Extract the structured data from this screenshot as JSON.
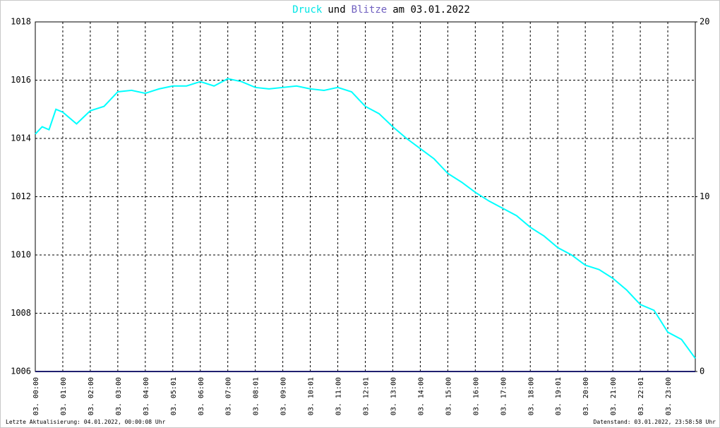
{
  "chart_data": {
    "type": "line",
    "title": [
      {
        "text": "Druck",
        "color": "#00e5e5"
      },
      {
        "text": "und",
        "color": "#000000"
      },
      {
        "text": "Blitze",
        "color": "#7060c0"
      },
      {
        "text": "am 03.01.2022",
        "color": "#000000"
      }
    ],
    "xlim": [
      0,
      24
    ],
    "xticks": [
      {
        "value": 0,
        "label": "03. 00:00"
      },
      {
        "value": 1,
        "label": "03. 01:00"
      },
      {
        "value": 2,
        "label": "03. 02:00"
      },
      {
        "value": 3,
        "label": "03. 03:00"
      },
      {
        "value": 4,
        "label": "03. 04:00"
      },
      {
        "value": 5,
        "label": "03. 05:01"
      },
      {
        "value": 6,
        "label": "03. 06:00"
      },
      {
        "value": 7,
        "label": "03. 07:00"
      },
      {
        "value": 8,
        "label": "03. 08:01"
      },
      {
        "value": 9,
        "label": "03. 09:00"
      },
      {
        "value": 10,
        "label": "03. 10:01"
      },
      {
        "value": 11,
        "label": "03. 11:00"
      },
      {
        "value": 12,
        "label": "03. 12:01"
      },
      {
        "value": 13,
        "label": "03. 13:00"
      },
      {
        "value": 14,
        "label": "03. 14:00"
      },
      {
        "value": 15,
        "label": "03. 15:00"
      },
      {
        "value": 16,
        "label": "03. 16:00"
      },
      {
        "value": 17,
        "label": "03. 17:00"
      },
      {
        "value": 18,
        "label": "03. 18:00"
      },
      {
        "value": 19,
        "label": "03. 19:01"
      },
      {
        "value": 20,
        "label": "03. 20:00"
      },
      {
        "value": 21,
        "label": "03. 21:00"
      },
      {
        "value": 22,
        "label": "03. 22:01"
      },
      {
        "value": 23,
        "label": "03. 23:00"
      }
    ],
    "ylim": [
      1006,
      1018
    ],
    "yticks": [
      1006,
      1008,
      1010,
      1012,
      1014,
      1016,
      1018
    ],
    "y2lim": [
      0,
      20
    ],
    "y2ticks": [
      0,
      10,
      20
    ],
    "grid": true,
    "series": [
      {
        "name": "Druck",
        "color": "#00ffff",
        "axis": "y",
        "x": [
          0,
          0.25,
          0.5,
          0.75,
          1,
          1.5,
          2,
          2.5,
          3,
          3.5,
          4,
          4.5,
          5,
          5.5,
          6,
          6.5,
          7,
          7.5,
          8,
          8.5,
          9,
          9.5,
          10,
          10.5,
          11,
          11.5,
          12,
          12.5,
          13,
          13.5,
          14,
          14.5,
          15,
          15.5,
          16,
          16.5,
          17,
          17.5,
          18,
          18.5,
          19,
          19.5,
          20,
          20.5,
          21,
          21.5,
          22,
          22.5,
          23,
          23.5,
          24
        ],
        "values": [
          1014.15,
          1014.4,
          1014.3,
          1015.0,
          1014.9,
          1014.5,
          1014.95,
          1015.1,
          1015.6,
          1015.65,
          1015.55,
          1015.7,
          1015.8,
          1015.8,
          1015.95,
          1015.8,
          1016.05,
          1015.95,
          1015.75,
          1015.7,
          1015.75,
          1015.8,
          1015.7,
          1015.65,
          1015.75,
          1015.6,
          1015.1,
          1014.85,
          1014.4,
          1014.0,
          1013.65,
          1013.3,
          1012.8,
          1012.5,
          1012.15,
          1011.85,
          1011.6,
          1011.35,
          1010.95,
          1010.65,
          1010.25,
          1010.0,
          1009.65,
          1009.5,
          1009.2,
          1008.8,
          1008.3,
          1008.1,
          1007.35,
          1007.1,
          1006.45
        ]
      },
      {
        "name": "Blitze",
        "color": "#202070",
        "axis": "y2",
        "x": [
          0,
          24
        ],
        "values": [
          0,
          0
        ]
      }
    ],
    "footer_left": "Letzte Aktualisierung: 04.01.2022, 00:00:08 Uhr",
    "footer_right": "Datenstand: 03.01.2022, 23:58:58 Uhr"
  }
}
